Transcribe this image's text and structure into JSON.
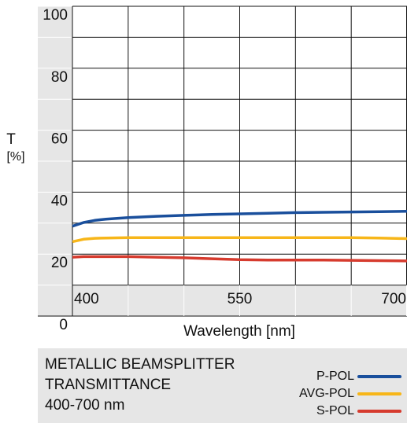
{
  "chart_data": {
    "type": "line",
    "title": "METALLIC BEAMSPLITTER TRANSMITTANCE 400-700 nm",
    "title_lines": [
      "METALLIC BEAMSPLITTER",
      "TRANSMITTANCE",
      "400-700 nm"
    ],
    "ylabel": "T",
    "ylabel_unit": "[%]",
    "xlabel": "Wavelength [nm]",
    "xlim": [
      400,
      700
    ],
    "ylim": [
      0,
      100
    ],
    "grid": true,
    "x_ticks": [
      400,
      450,
      500,
      550,
      600,
      650,
      700
    ],
    "x_tick_labels": [
      "400",
      "",
      "",
      "550",
      "",
      "",
      "700"
    ],
    "y_ticks": [
      0,
      10,
      20,
      30,
      40,
      50,
      60,
      70,
      80,
      90,
      100
    ],
    "y_tick_labels": [
      "0",
      "",
      "20",
      "",
      "40",
      "",
      "60",
      "",
      "80",
      "",
      "100"
    ],
    "legend_position": "bottom-right",
    "x": [
      400,
      410,
      420,
      430,
      450,
      475,
      500,
      525,
      550,
      575,
      600,
      625,
      650,
      675,
      700
    ],
    "series": [
      {
        "name": "P-POL",
        "color": "#1a4f9c",
        "values": [
          29.0,
          30.2,
          30.9,
          31.3,
          31.8,
          32.2,
          32.5,
          32.8,
          33.0,
          33.2,
          33.4,
          33.5,
          33.6,
          33.7,
          33.8
        ]
      },
      {
        "name": "AVG-POL",
        "color": "#f7b619",
        "values": [
          24.0,
          24.8,
          25.1,
          25.2,
          25.3,
          25.3,
          25.3,
          25.3,
          25.3,
          25.3,
          25.3,
          25.3,
          25.3,
          25.2,
          25.0
        ]
      },
      {
        "name": "S-POL",
        "color": "#d63b2e",
        "values": [
          19.0,
          19.2,
          19.2,
          19.2,
          19.2,
          19.0,
          18.8,
          18.5,
          18.2,
          18.1,
          18.1,
          18.1,
          18.0,
          17.9,
          17.8
        ]
      }
    ]
  }
}
